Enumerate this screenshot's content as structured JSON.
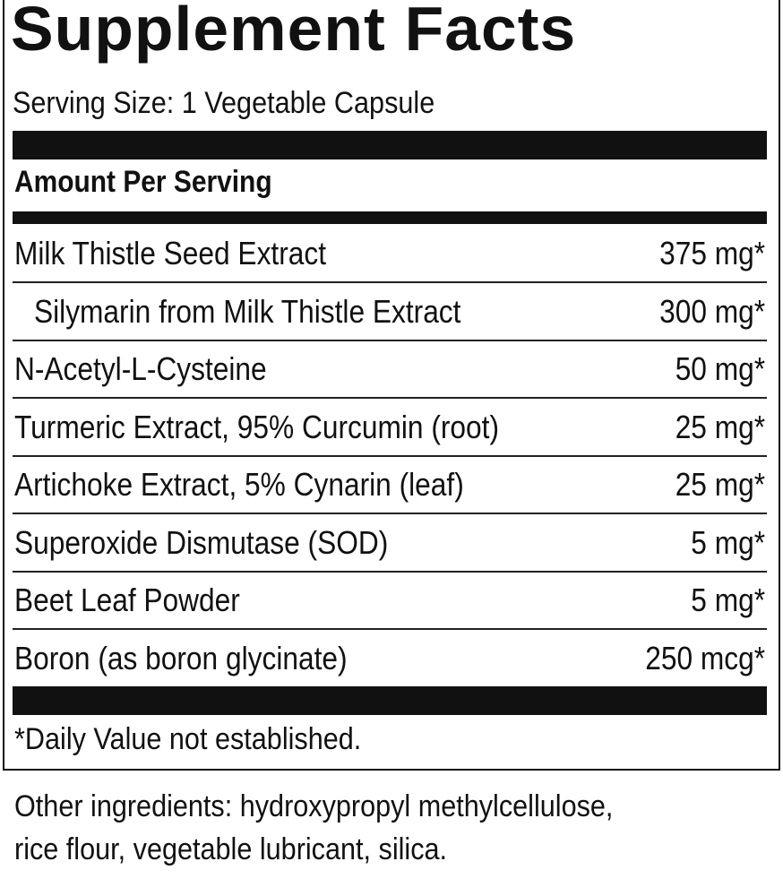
{
  "title": "Supplement Facts",
  "serving_size": "Serving Size: 1 Vegetable Capsule",
  "amount_header": "Amount Per Serving",
  "rows": [
    {
      "name": "Milk Thistle Seed Extract",
      "amount": "375 mg*"
    },
    {
      "name": "Silymarin from Milk Thistle Extract",
      "amount": "300 mg*",
      "indent": true
    },
    {
      "name": "N-Acetyl-L-Cysteine",
      "amount": "50 mg*"
    },
    {
      "name": "Turmeric Extract, 95% Curcumin (root)",
      "amount": "25 mg*"
    },
    {
      "name": "Artichoke Extract, 5% Cynarin (leaf)",
      "amount": "25 mg*"
    },
    {
      "name": "Superoxide Dismutase (SOD)",
      "amount": "5 mg*"
    },
    {
      "name": "Beet Leaf Powder",
      "amount": "5 mg*"
    },
    {
      "name": "Boron (as boron glycinate)",
      "amount": "250 mcg*"
    }
  ],
  "footnote": "*Daily Value not established.",
  "other_line1": "Other ingredients: hydroxypropyl methylcellulose,",
  "other_line2": "rice flour, vegetable lubricant, silica."
}
